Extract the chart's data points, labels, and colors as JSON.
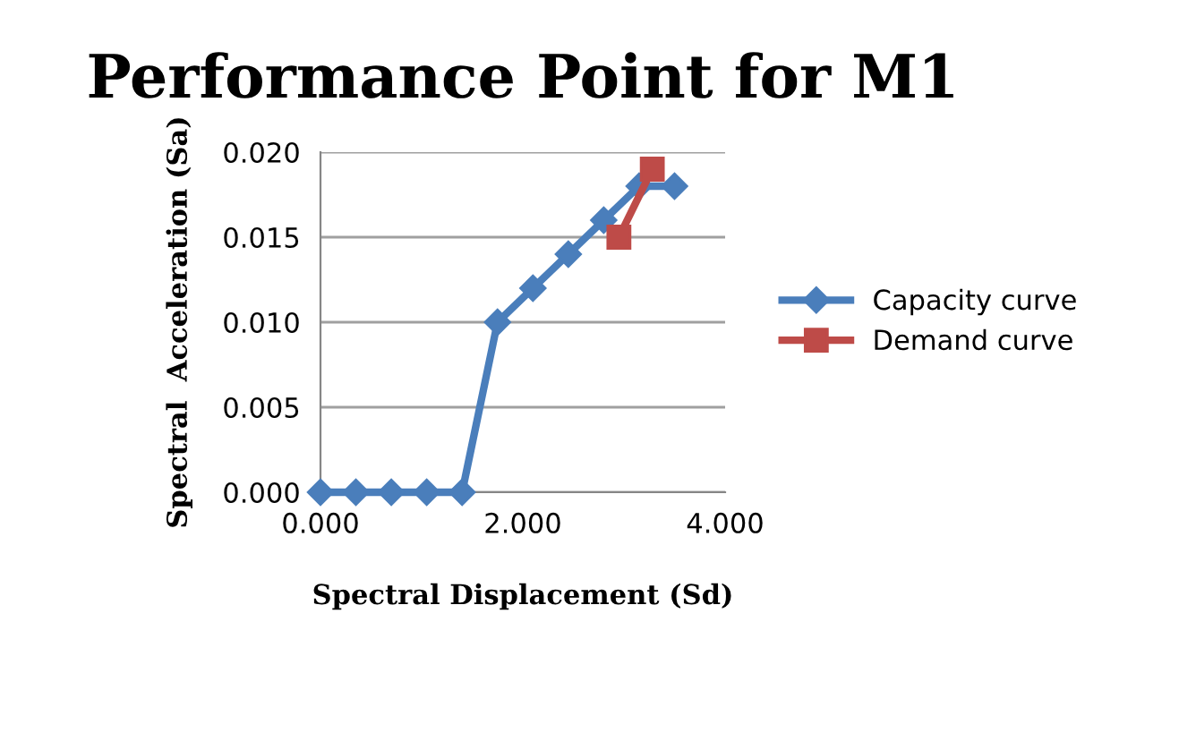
{
  "chart_data": {
    "type": "line",
    "title": "Performance Point for M1",
    "xlabel": "Spectral Displacement (Sd)",
    "ylabel": "Spectral  Acceleration (Sa)",
    "series": [
      {
        "name": "Capacity curve",
        "color": "#4a7ebb",
        "marker": "diamond",
        "x": [
          0,
          0.35,
          0.7,
          1.05,
          1.4,
          1.75,
          2.1,
          2.45,
          2.8,
          3.15,
          3.5
        ],
        "values": [
          0,
          0,
          0,
          0,
          0,
          0.01,
          0.012,
          0.014,
          0.016,
          0.018,
          0.018
        ]
      },
      {
        "name": "Demand curve",
        "color": "#be4b48",
        "marker": "square",
        "x": [
          2.95,
          3.28
        ],
        "values": [
          0.015,
          0.019
        ]
      }
    ],
    "xlim": [
      0,
      4
    ],
    "xticks": [
      {
        "value": 0,
        "label": "0.000"
      },
      {
        "value": 2,
        "label": "2.000"
      },
      {
        "value": 4,
        "label": "4.000"
      }
    ],
    "ylim": [
      0,
      0.02
    ],
    "yticks": [
      {
        "value": 0,
        "label": "0.000"
      },
      {
        "value": 0.005,
        "label": "0.005"
      },
      {
        "value": 0.01,
        "label": "0.010"
      },
      {
        "value": 0.015,
        "label": "0.015"
      },
      {
        "value": 0.02,
        "label": "0.020"
      }
    ],
    "grid": "y",
    "legend": "right"
  }
}
